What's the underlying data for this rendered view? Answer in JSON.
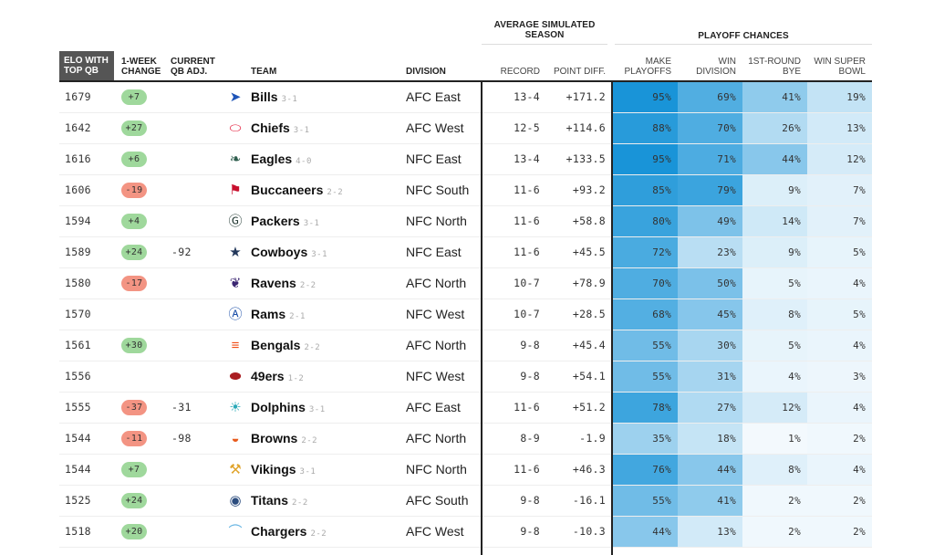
{
  "table": {
    "group_headers": {
      "season": "AVERAGE SIMULATED SEASON",
      "season_line1": "AVERAGE SIMULATED",
      "season_line2": "SEASON",
      "playoff": "PLAYOFF CHANCES"
    },
    "columns": {
      "elo_line1": "ELO WITH",
      "elo_line2": "TOP QB",
      "change_line1": "1-WEEK",
      "change_line2": "CHANGE",
      "qb_line1": "CURRENT",
      "qb_line2": "QB ADJ.",
      "team": "TEAM",
      "division": "DIVISION",
      "record": "RECORD",
      "point_diff": "POINT DIFF.",
      "make_playoffs_line1": "MAKE",
      "make_playoffs_line2": "PLAYOFFS",
      "win_division_line1": "WIN",
      "win_division_line2": "DIVISION",
      "bye_line1": "1ST-ROUND",
      "bye_line2": "BYE",
      "super_bowl_line1": "WIN SUPER",
      "super_bowl_line2": "BOWL"
    },
    "sorted_column": "elo",
    "colors": {
      "positive_change": "#9fd89c",
      "negative_change": "#f39483",
      "heat_low": "#f7fbfe",
      "heat_high": "#0f8fd6"
    },
    "rows": [
      {
        "elo": "1679",
        "change": "+7",
        "qb_adj": "",
        "team": "Bills",
        "team_record": "3-1",
        "logo": "bills-logo",
        "division": "AFC East",
        "record": "13-4",
        "point_diff": "+171.2",
        "make_playoffs": "95%",
        "win_division": "69%",
        "bye": "41%",
        "super_bowl": "19%"
      },
      {
        "elo": "1642",
        "change": "+27",
        "qb_adj": "",
        "team": "Chiefs",
        "team_record": "3-1",
        "logo": "chiefs-logo",
        "division": "AFC West",
        "record": "12-5",
        "point_diff": "+114.6",
        "make_playoffs": "88%",
        "win_division": "70%",
        "bye": "26%",
        "super_bowl": "13%"
      },
      {
        "elo": "1616",
        "change": "+6",
        "qb_adj": "",
        "team": "Eagles",
        "team_record": "4-0",
        "logo": "eagles-logo",
        "division": "NFC East",
        "record": "13-4",
        "point_diff": "+133.5",
        "make_playoffs": "95%",
        "win_division": "71%",
        "bye": "44%",
        "super_bowl": "12%"
      },
      {
        "elo": "1606",
        "change": "-19",
        "qb_adj": "",
        "team": "Buccaneers",
        "team_record": "2-2",
        "logo": "buccaneers-logo",
        "division": "NFC South",
        "record": "11-6",
        "point_diff": "+93.2",
        "make_playoffs": "85%",
        "win_division": "79%",
        "bye": "9%",
        "super_bowl": "7%"
      },
      {
        "elo": "1594",
        "change": "+4",
        "qb_adj": "",
        "team": "Packers",
        "team_record": "3-1",
        "logo": "packers-logo",
        "division": "NFC North",
        "record": "11-6",
        "point_diff": "+58.8",
        "make_playoffs": "80%",
        "win_division": "49%",
        "bye": "14%",
        "super_bowl": "7%"
      },
      {
        "elo": "1589",
        "change": "+24",
        "qb_adj": "-92",
        "team": "Cowboys",
        "team_record": "3-1",
        "logo": "cowboys-logo",
        "division": "NFC East",
        "record": "11-6",
        "point_diff": "+45.5",
        "make_playoffs": "72%",
        "win_division": "23%",
        "bye": "9%",
        "super_bowl": "5%"
      },
      {
        "elo": "1580",
        "change": "-17",
        "qb_adj": "",
        "team": "Ravens",
        "team_record": "2-2",
        "logo": "ravens-logo",
        "division": "AFC North",
        "record": "10-7",
        "point_diff": "+78.9",
        "make_playoffs": "70%",
        "win_division": "50%",
        "bye": "5%",
        "super_bowl": "4%"
      },
      {
        "elo": "1570",
        "change": "",
        "qb_adj": "",
        "team": "Rams",
        "team_record": "2-1",
        "logo": "rams-logo",
        "division": "NFC West",
        "record": "10-7",
        "point_diff": "+28.5",
        "make_playoffs": "68%",
        "win_division": "45%",
        "bye": "8%",
        "super_bowl": "5%"
      },
      {
        "elo": "1561",
        "change": "+30",
        "qb_adj": "",
        "team": "Bengals",
        "team_record": "2-2",
        "logo": "bengals-logo",
        "division": "AFC North",
        "record": "9-8",
        "point_diff": "+45.4",
        "make_playoffs": "55%",
        "win_division": "30%",
        "bye": "5%",
        "super_bowl": "4%"
      },
      {
        "elo": "1556",
        "change": "",
        "qb_adj": "",
        "team": "49ers",
        "team_record": "1-2",
        "logo": "49ers-logo",
        "division": "NFC West",
        "record": "9-8",
        "point_diff": "+54.1",
        "make_playoffs": "55%",
        "win_division": "31%",
        "bye": "4%",
        "super_bowl": "3%"
      },
      {
        "elo": "1555",
        "change": "-37",
        "qb_adj": "-31",
        "team": "Dolphins",
        "team_record": "3-1",
        "logo": "dolphins-logo",
        "division": "AFC East",
        "record": "11-6",
        "point_diff": "+51.2",
        "make_playoffs": "78%",
        "win_division": "27%",
        "bye": "12%",
        "super_bowl": "4%"
      },
      {
        "elo": "1544",
        "change": "-11",
        "qb_adj": "-98",
        "team": "Browns",
        "team_record": "2-2",
        "logo": "browns-logo",
        "division": "AFC North",
        "record": "8-9",
        "point_diff": "-1.9",
        "make_playoffs": "35%",
        "win_division": "18%",
        "bye": "1%",
        "super_bowl": "2%"
      },
      {
        "elo": "1544",
        "change": "+7",
        "qb_adj": "",
        "team": "Vikings",
        "team_record": "3-1",
        "logo": "vikings-logo",
        "division": "NFC North",
        "record": "11-6",
        "point_diff": "+46.3",
        "make_playoffs": "76%",
        "win_division": "44%",
        "bye": "8%",
        "super_bowl": "4%"
      },
      {
        "elo": "1525",
        "change": "+24",
        "qb_adj": "",
        "team": "Titans",
        "team_record": "2-2",
        "logo": "titans-logo",
        "division": "AFC South",
        "record": "9-8",
        "point_diff": "-16.1",
        "make_playoffs": "55%",
        "win_division": "41%",
        "bye": "2%",
        "super_bowl": "2%"
      },
      {
        "elo": "1518",
        "change": "+20",
        "qb_adj": "",
        "team": "Chargers",
        "team_record": "2-2",
        "logo": "chargers-logo",
        "division": "AFC West",
        "record": "9-8",
        "point_diff": "-10.3",
        "make_playoffs": "44%",
        "win_division": "13%",
        "bye": "2%",
        "super_bowl": "2%"
      }
    ]
  }
}
